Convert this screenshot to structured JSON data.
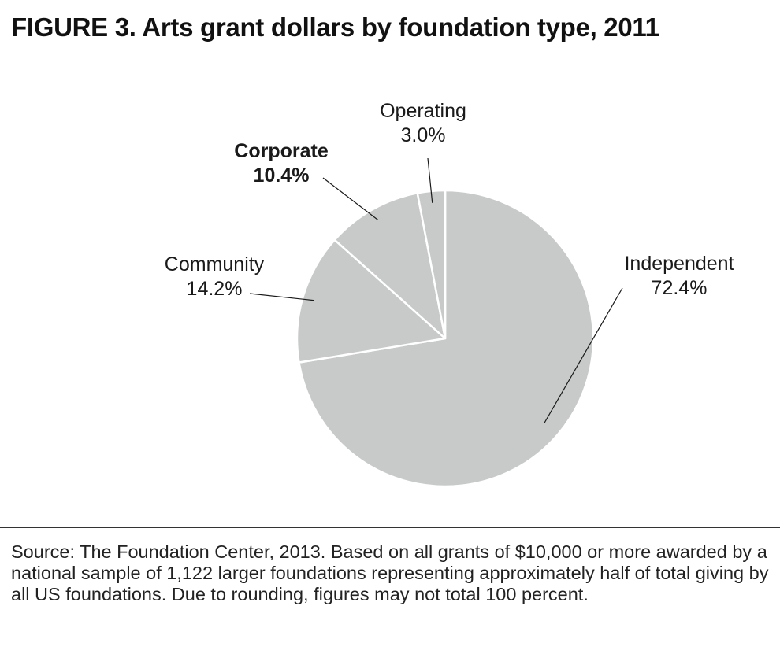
{
  "title": "FIGURE 3. Arts grant dollars by foundation type,  2011",
  "source": "Source: The Foundation Center, 2013. Based on all grants of $10,000 or more awarded by a national sample of 1,122 larger foundations representing approximately half of total giving by all US foundations. Due to rounding, figures may not total 100 percent.",
  "colors": {
    "slice_fill": "#c8cac9",
    "slice_border": "#ffffff",
    "text": "#1a1a1a"
  },
  "chart_data": {
    "type": "pie",
    "unit": "%",
    "start_angle_deg": 0,
    "direction": "clockwise",
    "slices": [
      {
        "label": "Independent",
        "value": 72.4,
        "value_label": "72.4%",
        "bold": false
      },
      {
        "label": "Community",
        "value": 14.2,
        "value_label": "14.2%",
        "bold": false
      },
      {
        "label": "Corporate",
        "value": 10.4,
        "value_label": "10.4%",
        "bold": true
      },
      {
        "label": "Operating",
        "value": 3.0,
        "value_label": "3.0%",
        "bold": false
      }
    ]
  }
}
